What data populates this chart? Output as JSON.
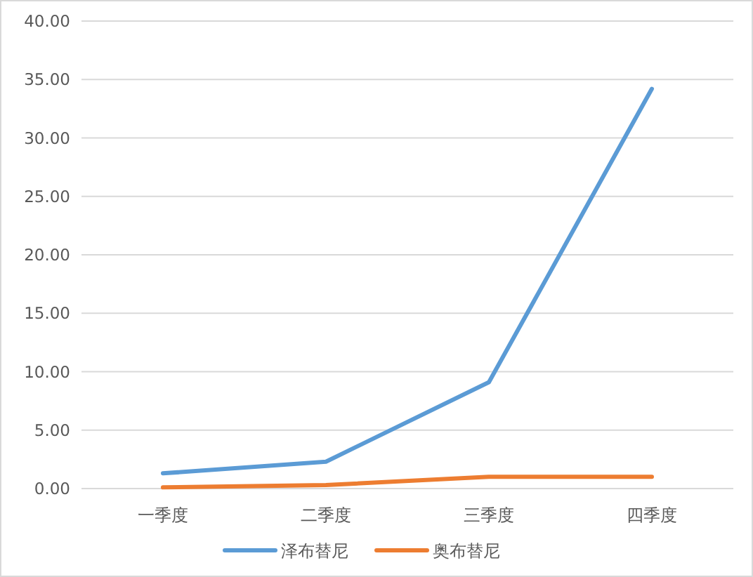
{
  "chart_data": {
    "type": "line",
    "categories": [
      "一季度",
      "二季度",
      "三季度",
      "四季度"
    ],
    "series": [
      {
        "name": "泽布替尼",
        "color": "#5b9bd5",
        "values": [
          1.3,
          2.3,
          9.1,
          34.2
        ]
      },
      {
        "name": "奥布替尼",
        "color": "#ed7d31",
        "values": [
          0.1,
          0.3,
          1.0,
          1.0
        ]
      }
    ],
    "ylim": [
      0,
      40
    ],
    "yticks": [
      {
        "value": 0,
        "label": "0.00"
      },
      {
        "value": 5,
        "label": "5.00"
      },
      {
        "value": 10,
        "label": "10.00"
      },
      {
        "value": 15,
        "label": "15.00"
      },
      {
        "value": 20,
        "label": "20.00"
      },
      {
        "value": 25,
        "label": "25.00"
      },
      {
        "value": 30,
        "label": "30.00"
      },
      {
        "value": 35,
        "label": "35.00"
      },
      {
        "value": 40,
        "label": "40.00"
      }
    ],
    "grid": "y",
    "legend": "bottom",
    "marker": "none",
    "line_style": "solid"
  }
}
